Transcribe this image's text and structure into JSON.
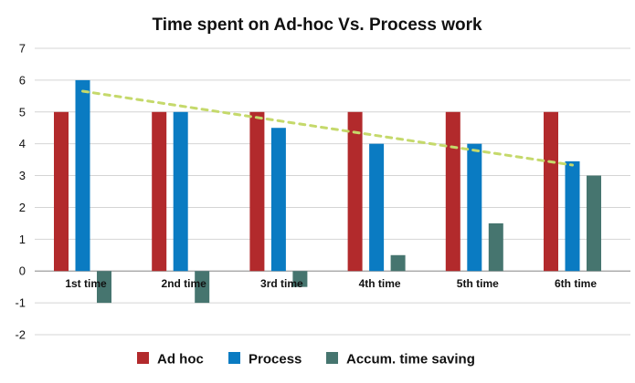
{
  "chart_data": {
    "type": "bar",
    "title": "Time spent on Ad-hoc Vs. Process work",
    "categories": [
      "1st time",
      "2nd time",
      "3rd time",
      "4th time",
      "5th time",
      "6th time"
    ],
    "series": [
      {
        "name": "Ad hoc",
        "color": "#b22a2c",
        "values": [
          5,
          5,
          5,
          5,
          5,
          5
        ]
      },
      {
        "name": "Process",
        "color": "#0a7bc2",
        "values": [
          6,
          5,
          4.5,
          4,
          4,
          3.45
        ]
      },
      {
        "name": "Accum. time saving",
        "color": "#46756f",
        "values": [
          -1,
          -1,
          -0.5,
          0.5,
          1.5,
          3
        ]
      }
    ],
    "trendline": {
      "series": "Process",
      "style": "dotted",
      "color": "#c5d96b"
    },
    "ylim": [
      -2,
      7
    ],
    "yticks": [
      7,
      6,
      5,
      4,
      3,
      2,
      1,
      0,
      -1,
      -2
    ],
    "grid": true,
    "legend_position": "bottom",
    "xlabel": "",
    "ylabel": ""
  }
}
